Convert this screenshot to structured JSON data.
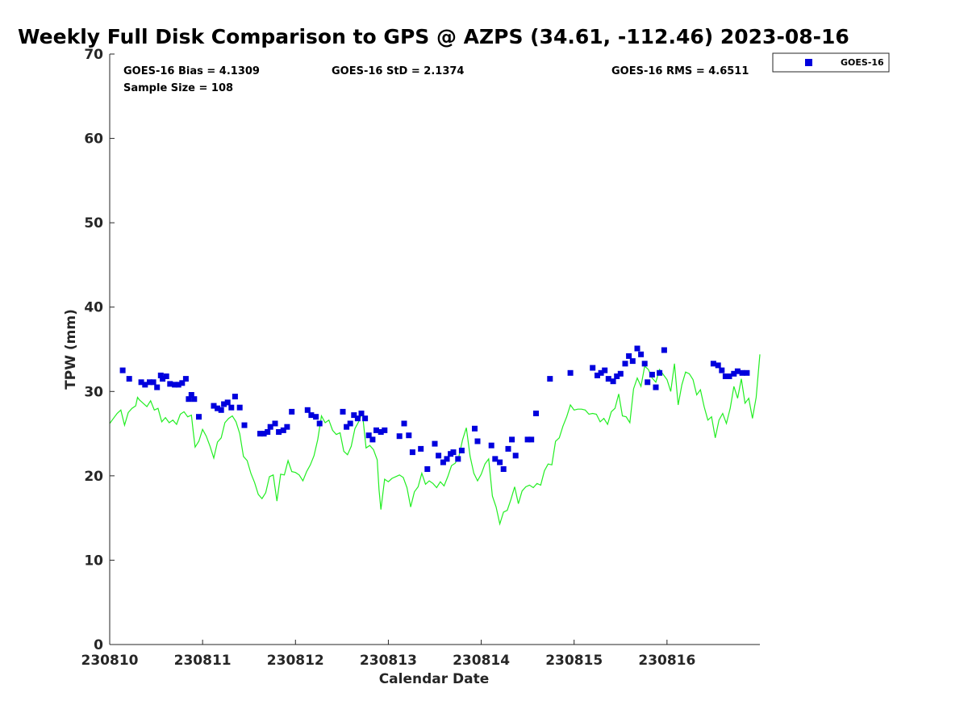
{
  "chart_data": {
    "type": "scatter",
    "title": "Weekly Full Disk Comparison to GPS @ AZPS (34.61, -112.46) 2023-08-16",
    "xlabel": "Calendar Date",
    "ylabel": "TPW (mm)",
    "xlim": [
      0,
      7
    ],
    "ylim": [
      0,
      70
    ],
    "x_ticks": [
      0,
      1,
      2,
      3,
      4,
      5,
      6
    ],
    "x_tick_labels": [
      "230810",
      "230811",
      "230812",
      "230813",
      "230814",
      "230815",
      "230816"
    ],
    "y_ticks": [
      0,
      10,
      20,
      30,
      40,
      50,
      60,
      70
    ],
    "y_tick_labels": [
      "0",
      "10",
      "20",
      "30",
      "40",
      "50",
      "60",
      "70"
    ],
    "legend": {
      "position": "outside-top-right",
      "entries": [
        "GOES-16"
      ]
    },
    "stats": {
      "bias": "GOES-16 Bias = 4.1309",
      "std": "GOES-16 StD = 2.1374",
      "rms": "GOES-16 RMS = 4.6511",
      "sample": "Sample Size = 108"
    },
    "colors": {
      "goes": "#0000dd",
      "gps": "#22ee22",
      "axis": "#262626"
    },
    "series": [
      {
        "name": "GOES-16",
        "kind": "scatter",
        "x": [
          0.14,
          0.21,
          0.34,
          0.38,
          0.43,
          0.47,
          0.51,
          0.55,
          0.57,
          0.61,
          0.65,
          0.7,
          0.74,
          0.78,
          0.82,
          0.85,
          0.88,
          0.91,
          0.96,
          1.12,
          1.16,
          1.2,
          1.23,
          1.27,
          1.31,
          1.35,
          1.4,
          1.45,
          1.62,
          1.66,
          1.7,
          1.73,
          1.78,
          1.82,
          1.87,
          1.91,
          1.96,
          2.13,
          2.17,
          2.22,
          2.26,
          2.51,
          2.55,
          2.59,
          2.63,
          2.67,
          2.71,
          2.75,
          2.79,
          2.83,
          2.87,
          2.92,
          2.96,
          3.12,
          3.17,
          3.22,
          3.26,
          3.35,
          3.42,
          3.5,
          3.54,
          3.59,
          3.63,
          3.67,
          3.7,
          3.75,
          3.79,
          3.93,
          3.96,
          4.11,
          4.15,
          4.2,
          4.24,
          4.29,
          4.33,
          4.37,
          4.5,
          4.54,
          4.59,
          4.74,
          4.96,
          5.2,
          5.25,
          5.29,
          5.33,
          5.37,
          5.42,
          5.46,
          5.5,
          5.55,
          5.59,
          5.63,
          5.68,
          5.72,
          5.76,
          5.79,
          5.84,
          5.88,
          5.92,
          5.97,
          6.5,
          6.55,
          6.59,
          6.63,
          6.67,
          6.72,
          6.76,
          6.81,
          6.86
        ],
        "y": [
          32.5,
          31.5,
          31.1,
          30.8,
          31.1,
          31.1,
          30.5,
          31.9,
          31.5,
          31.8,
          30.9,
          30.8,
          30.8,
          31.0,
          31.5,
          29.1,
          29.6,
          29.1,
          27.0,
          28.3,
          28.0,
          27.8,
          28.5,
          28.7,
          28.1,
          29.4,
          28.1,
          26.0,
          25.0,
          25.0,
          25.2,
          25.8,
          26.2,
          25.2,
          25.4,
          25.8,
          27.6,
          27.8,
          27.2,
          27.0,
          26.2,
          27.6,
          25.8,
          26.2,
          27.2,
          26.8,
          27.4,
          26.8,
          24.8,
          24.3,
          25.4,
          25.2,
          25.4,
          24.7,
          26.2,
          24.8,
          22.8,
          23.2,
          20.8,
          23.8,
          22.4,
          21.6,
          22.0,
          22.6,
          22.8,
          22.0,
          23.0,
          25.6,
          24.1,
          23.6,
          22.0,
          21.6,
          20.8,
          23.2,
          24.3,
          22.4,
          24.3,
          24.3,
          27.4,
          31.5,
          32.2,
          32.8,
          31.9,
          32.2,
          32.5,
          31.5,
          31.2,
          31.8,
          32.1,
          33.3,
          34.2,
          33.6,
          35.1,
          34.4,
          33.3,
          31.1,
          32.0,
          30.5,
          32.2,
          34.9,
          33.3,
          33.1,
          32.5,
          31.8,
          31.8,
          32.1,
          32.4,
          32.2,
          32.2
        ]
      },
      {
        "name": "GPS",
        "kind": "line",
        "x": [
          0,
          0.04,
          0.08,
          0.12,
          0.16,
          0.2,
          0.24,
          0.28,
          0.3,
          0.32,
          0.36,
          0.4,
          0.44,
          0.48,
          0.52,
          0.56,
          0.6,
          0.64,
          0.68,
          0.72,
          0.76,
          0.8,
          0.84,
          0.88,
          0.9,
          0.92,
          0.96,
          1.0,
          1.04,
          1.08,
          1.12,
          1.16,
          1.2,
          1.24,
          1.28,
          1.32,
          1.36,
          1.4,
          1.44,
          1.48,
          1.52,
          1.56,
          1.6,
          1.64,
          1.68,
          1.72,
          1.76,
          1.8,
          1.84,
          1.88,
          1.92,
          1.96,
          2.0,
          2.04,
          2.08,
          2.12,
          2.16,
          2.2,
          2.24,
          2.28,
          2.32,
          2.36,
          2.4,
          2.44,
          2.48,
          2.52,
          2.56,
          2.6,
          2.64,
          2.68,
          2.72,
          2.76,
          2.8,
          2.84,
          2.88,
          2.9,
          2.92,
          2.96,
          3.0,
          3.04,
          3.08,
          3.12,
          3.16,
          3.2,
          3.24,
          3.28,
          3.32,
          3.36,
          3.4,
          3.44,
          3.48,
          3.52,
          3.56,
          3.6,
          3.64,
          3.68,
          3.72,
          3.76,
          3.8,
          3.84,
          3.88,
          3.92,
          3.96,
          4.0,
          4.04,
          4.08,
          4.12,
          4.16,
          4.2,
          4.24,
          4.28,
          4.32,
          4.36,
          4.4,
          4.44,
          4.48,
          4.52,
          4.56,
          4.6,
          4.64,
          4.68,
          4.72,
          4.76,
          4.8,
          4.84,
          4.88,
          4.92,
          4.96,
          5.0,
          5.04,
          5.08,
          5.12,
          5.16,
          5.2,
          5.24,
          5.28,
          5.32,
          5.36,
          5.4,
          5.44,
          5.48,
          5.52,
          5.56,
          5.6,
          5.64,
          5.68,
          5.72,
          5.76,
          5.8,
          5.84,
          5.88,
          5.92,
          5.96,
          6.0,
          6.04,
          6.08,
          6.12,
          6.16,
          6.2,
          6.24,
          6.28,
          6.32,
          6.36,
          6.4,
          6.44,
          6.48,
          6.52,
          6.56,
          6.6,
          6.64,
          6.68,
          6.72,
          6.76,
          6.8,
          6.84,
          6.88,
          6.92,
          6.96,
          7.0
        ],
        "y": [
          26.2,
          26.8,
          27.4,
          27.8,
          26.0,
          27.5,
          28.0,
          28.3,
          29.3,
          29.0,
          28.6,
          28.2,
          28.9,
          27.8,
          28.0,
          26.4,
          26.9,
          26.3,
          26.6,
          26.1,
          27.3,
          27.6,
          27.0,
          27.2,
          25.2,
          23.4,
          24.1,
          25.5,
          24.7,
          23.5,
          22.1,
          24.0,
          24.5,
          26.3,
          26.8,
          27.1,
          26.4,
          25.0,
          22.3,
          21.8,
          20.3,
          19.2,
          17.8,
          17.3,
          18.0,
          19.9,
          20.1,
          17.0,
          20.2,
          20.1,
          21.8,
          20.5,
          20.4,
          20.1,
          19.4,
          20.5,
          21.3,
          22.4,
          24.3,
          27.1,
          26.3,
          26.6,
          25.4,
          24.9,
          25.1,
          22.9,
          22.5,
          23.5,
          25.6,
          26.4,
          27.5,
          23.3,
          23.6,
          23.1,
          21.9,
          18.3,
          16.0,
          19.6,
          19.3,
          19.7,
          19.9,
          20.1,
          19.8,
          18.6,
          16.3,
          18.1,
          18.7,
          20.3,
          19.0,
          19.4,
          19.1,
          18.6,
          19.3,
          18.8,
          19.9,
          21.2,
          21.5,
          22.3,
          24.3,
          25.7,
          22.3,
          20.3,
          19.4,
          20.2,
          21.4,
          22.0,
          17.6,
          16.3,
          14.3,
          15.7,
          15.9,
          17.2,
          18.7,
          16.7,
          18.2,
          18.7,
          18.9,
          18.6,
          19.1,
          18.9,
          20.6,
          21.4,
          21.3,
          24.1,
          24.5,
          25.9,
          27.0,
          28.4,
          27.8,
          27.9,
          27.9,
          27.8,
          27.3,
          27.4,
          27.3,
          26.4,
          26.8,
          26.1,
          27.6,
          28.0,
          29.7,
          27.1,
          27.0,
          26.3,
          30.3,
          31.6,
          30.6,
          33.0,
          32.6,
          31.6,
          31.1,
          32.6,
          32.0,
          31.4,
          30.0,
          33.3,
          28.4,
          30.8,
          32.3,
          32.1,
          31.4,
          29.6,
          30.2,
          28.2,
          26.6,
          27.0,
          24.5,
          26.6,
          27.4,
          26.2,
          28.0,
          30.6,
          29.2,
          31.5,
          28.6,
          29.2,
          26.8,
          29.3,
          34.4
        ]
      }
    ]
  }
}
